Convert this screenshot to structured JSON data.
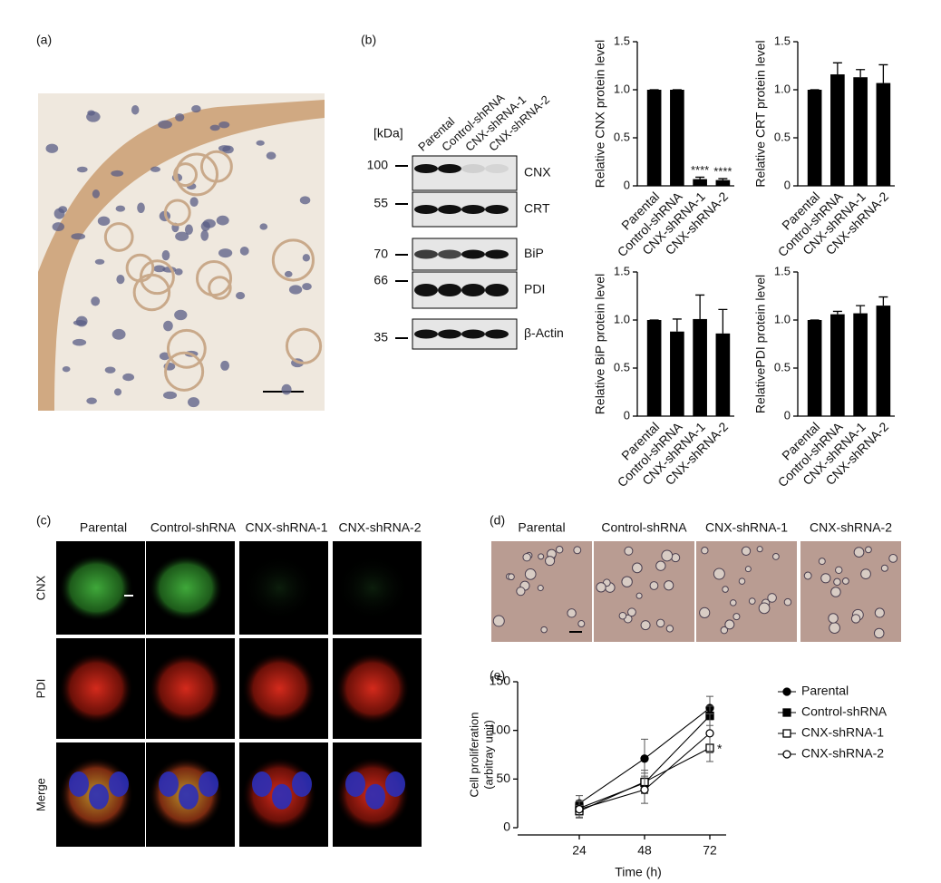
{
  "panel_labels": [
    "(a)",
    "(b)",
    "(c)",
    "(d)",
    "(e)"
  ],
  "blot": {
    "unit": "[kDa]",
    "lanes": [
      "Parental",
      "Control-shRNA",
      "CNX-shRNA-1",
      "CNX-shRNA-2"
    ],
    "markers": [
      100,
      55,
      70,
      66,
      35
    ],
    "proteins": [
      "CNX",
      "CRT",
      "BiP",
      "PDI",
      "β-Actin"
    ]
  },
  "micrographs_c": {
    "columns": [
      "Parental",
      "Control-shRNA",
      "CNX-shRNA-1",
      "CNX-shRNA-2"
    ],
    "rows": [
      "CNX",
      "PDI",
      "Merge"
    ]
  },
  "micrographs_d": {
    "columns": [
      "Parental",
      "Control-shRNA",
      "CNX-shRNA-1",
      "CNX-shRNA-2"
    ]
  },
  "chart_data": [
    {
      "type": "bar",
      "ylabel": "Relative CNX protein level",
      "categories": [
        "Parental",
        "Control-shRNA",
        "CNX-shRNA-1",
        "CNX-shRNA-2"
      ],
      "values": [
        1,
        1,
        0.07,
        0.06
      ],
      "errors": [
        0,
        0,
        0.02,
        0.015
      ],
      "color": "#000000",
      "ylim": [
        0,
        1.5
      ],
      "yticks": [
        0,
        0.5,
        {
          "value": 1,
          "label": "1.0"
        },
        1.5
      ],
      "annotations": [
        {
          "category": "CNX-shRNA-1",
          "text": "****"
        },
        {
          "category": "CNX-shRNA-2",
          "text": "****"
        }
      ]
    },
    {
      "type": "bar",
      "ylabel": "Relative CRT protein level",
      "categories": [
        "Parental",
        "Control-shRNA",
        "CNX-shRNA-1",
        "CNX-shRNA-2"
      ],
      "values": [
        1,
        1.16,
        1.13,
        1.07
      ],
      "errors": [
        0,
        0.12,
        0.08,
        0.19
      ],
      "color": "#000000",
      "ylim": [
        0,
        1.5
      ],
      "yticks": [
        0,
        0.5,
        {
          "value": 1,
          "label": "1.0"
        },
        1.5
      ]
    },
    {
      "type": "bar",
      "ylabel": "Relative BiP protein level",
      "categories": [
        "Parental",
        "Control-shRNA",
        "CNX-shRNA-1",
        "CNX-shRNA-2"
      ],
      "values": [
        1,
        0.88,
        1.01,
        0.86
      ],
      "errors": [
        0,
        0.13,
        0.25,
        0.25
      ],
      "color": "#000000",
      "ylim": [
        0,
        1.5
      ],
      "yticks": [
        0,
        0.5,
        {
          "value": 1,
          "label": "1.0"
        },
        1.5
      ]
    },
    {
      "type": "bar",
      "ylabel": "RelativePDI protein level",
      "categories": [
        "Parental",
        "Control-shRNA",
        "CNX-shRNA-1",
        "CNX-shRNA-2"
      ],
      "values": [
        1,
        1.06,
        1.07,
        1.15
      ],
      "errors": [
        0,
        0.03,
        0.08,
        0.09
      ],
      "color": "#000000",
      "ylim": [
        0,
        1.5
      ],
      "yticks": [
        0,
        0.5,
        {
          "value": 1,
          "label": "1.0"
        },
        1.5
      ]
    },
    {
      "type": "line",
      "xlabel": "Time (h)",
      "ylabel": [
        "Cell proliferation",
        "(arbitray unit)"
      ],
      "x": [
        24,
        48,
        72
      ],
      "xlim": [
        0,
        78
      ],
      "xticks": [
        24,
        48,
        72
      ],
      "ylim": [
        0,
        150
      ],
      "yticks": [
        0,
        50,
        100,
        150
      ],
      "series": [
        {
          "name": "Parental",
          "marker": "circle-filled",
          "color": "#000000",
          "values": [
            25,
            71,
            123
          ],
          "errors": [
            8,
            20,
            12
          ]
        },
        {
          "name": "Control-shRNA",
          "marker": "square-filled",
          "color": "#000000",
          "values": [
            20,
            46,
            115
          ],
          "errors": [
            7,
            10,
            10
          ]
        },
        {
          "name": "CNX-shRNA-1",
          "marker": "square-open",
          "color": "#000000",
          "values": [
            17,
            47,
            82
          ],
          "errors": [
            6,
            12,
            14
          ]
        },
        {
          "name": "CNX-shRNA-2",
          "marker": "circle-open",
          "color": "#000000",
          "values": [
            19,
            39,
            97
          ],
          "errors": [
            9,
            14,
            20
          ]
        }
      ],
      "annotations": [
        {
          "series": "CNX-shRNA-1",
          "x": 72,
          "text": "*"
        }
      ]
    }
  ]
}
